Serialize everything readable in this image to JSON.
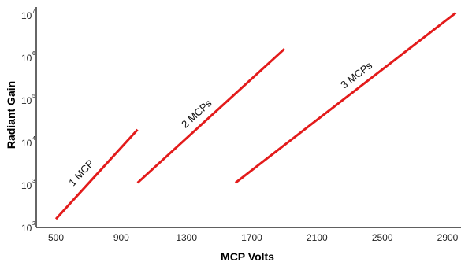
{
  "chart_data": {
    "type": "line",
    "title": "",
    "xlabel": "MCP Volts",
    "ylabel": "Radiant Gain",
    "xlim": [
      450,
      3050
    ],
    "ylim": [
      2,
      7
    ],
    "y_scale": "log10",
    "x_ticks": [
      500,
      900,
      1300,
      1700,
      2100,
      2500,
      2900
    ],
    "y_ticks": [
      {
        "base": "10",
        "exp": "2",
        "value": 2
      },
      {
        "base": "10",
        "exp": "3",
        "value": 3
      },
      {
        "base": "10",
        "exp": "4",
        "value": 4
      },
      {
        "base": "10",
        "exp": "5",
        "value": 5
      },
      {
        "base": "10",
        "exp": "6",
        "value": 6
      },
      {
        "base": "10",
        "exp": "7",
        "value": 7
      }
    ],
    "grid": false,
    "line_color": "#e31b1b",
    "series": [
      {
        "name": "1 MCP",
        "x": [
          500,
          1000
        ],
        "y": [
          2.2,
          4.3
        ]
      },
      {
        "name": "2 MCPs",
        "x": [
          1000,
          1900
        ],
        "y": [
          3.05,
          6.2
        ]
      },
      {
        "name": "3 MCPs",
        "x": [
          1600,
          2950
        ],
        "y": [
          3.05,
          7.05
        ]
      }
    ]
  }
}
